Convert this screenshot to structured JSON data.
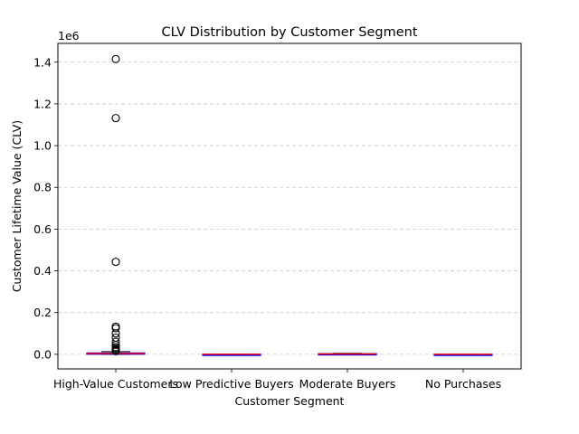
{
  "chart_data": {
    "type": "box",
    "title": "CLV Distribution by Customer Segment",
    "xlabel": "Customer Segment",
    "ylabel": "Customer Lifetime Value (CLV)",
    "y_offset_label": "1e6",
    "ylim": [
      -70000,
      1490000
    ],
    "yticks": [
      0,
      200000,
      400000,
      600000,
      800000,
      1000000,
      1200000,
      1400000
    ],
    "ytick_labels": [
      "0.0",
      "0.2",
      "0.4",
      "0.6",
      "0.8",
      "1.0",
      "1.2",
      "1.4"
    ],
    "grid": "horizontal dashed",
    "categories": [
      "High-Value Customers",
      "Low Predictive Buyers",
      "Moderate Buyers",
      "No Purchases"
    ],
    "boxes": [
      {
        "category": "High-Value Customers",
        "whisker_low": 0,
        "q1": 2000,
        "median": 4000,
        "q3": 6500,
        "whisker_high": 13000,
        "outliers": [
          1415000,
          1132000,
          443000,
          133000,
          125000,
          100000,
          80000,
          60000,
          45000,
          35000,
          28000,
          22000,
          18000,
          15000
        ]
      },
      {
        "category": "Low Predictive Buyers",
        "whisker_low": -1000,
        "q1": -500,
        "median": 0,
        "q3": 500,
        "whisker_high": 1000,
        "outliers": []
      },
      {
        "category": "Moderate Buyers",
        "whisker_low": 0,
        "q1": 500,
        "median": 1500,
        "q3": 3000,
        "whisker_high": 5000,
        "outliers": []
      },
      {
        "category": "No Purchases",
        "whisker_low": -500,
        "q1": -200,
        "median": 0,
        "q3": 200,
        "whisker_high": 500,
        "outliers": []
      }
    ],
    "colors": {
      "box": "#0000ff",
      "median": "#ff0000",
      "whisker": "#800080",
      "outlier_edge": "#000000",
      "grid": "#c8c8c8"
    }
  }
}
